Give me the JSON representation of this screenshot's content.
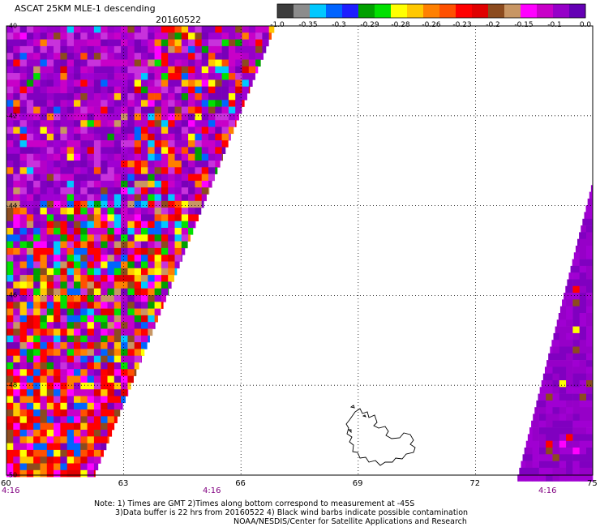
{
  "header": {
    "title": "ASCAT 25KM MLE-1 descending",
    "date": "20160522"
  },
  "colorbar": {
    "colors": [
      "#3c3c3c",
      "#8c8c8c",
      "#00c8ff",
      "#0064ff",
      "#1e1eff",
      "#00a000",
      "#00e000",
      "#ffff00",
      "#ffc800",
      "#ff8000",
      "#ff5000",
      "#ff0000",
      "#e00000",
      "#8c4b1e",
      "#c89664",
      "#ff00ff",
      "#c800c8",
      "#9600c8",
      "#6400b4"
    ],
    "labels": [
      "-1.0",
      "-0.35",
      "-0.3",
      "-0.29",
      "-0.28",
      "-0.26",
      "-0.23",
      "-0.2",
      "-0.15",
      "-0.1",
      "0.0"
    ]
  },
  "map": {
    "x_ticks": [
      "60",
      "63",
      "66",
      "69",
      "72",
      "75"
    ],
    "y_ticks": [
      "-40",
      "-42",
      "-44",
      "-46",
      "-48",
      "-50"
    ],
    "times": [
      "4:16",
      "4:16",
      "4:16"
    ],
    "lon_range": [
      60,
      75
    ],
    "lat_range": [
      -40,
      -50
    ]
  },
  "notes": {
    "line1": "Note: 1) Times are GMT 2)Times along bottom correspond to measurement at -45S",
    "line2": "3)Data buffer is 22 hrs from 20160522 4) Black wind barbs indicate possible contamination",
    "line3": "NOAA/NESDIS/Center for Satellite Applications and Research"
  }
}
